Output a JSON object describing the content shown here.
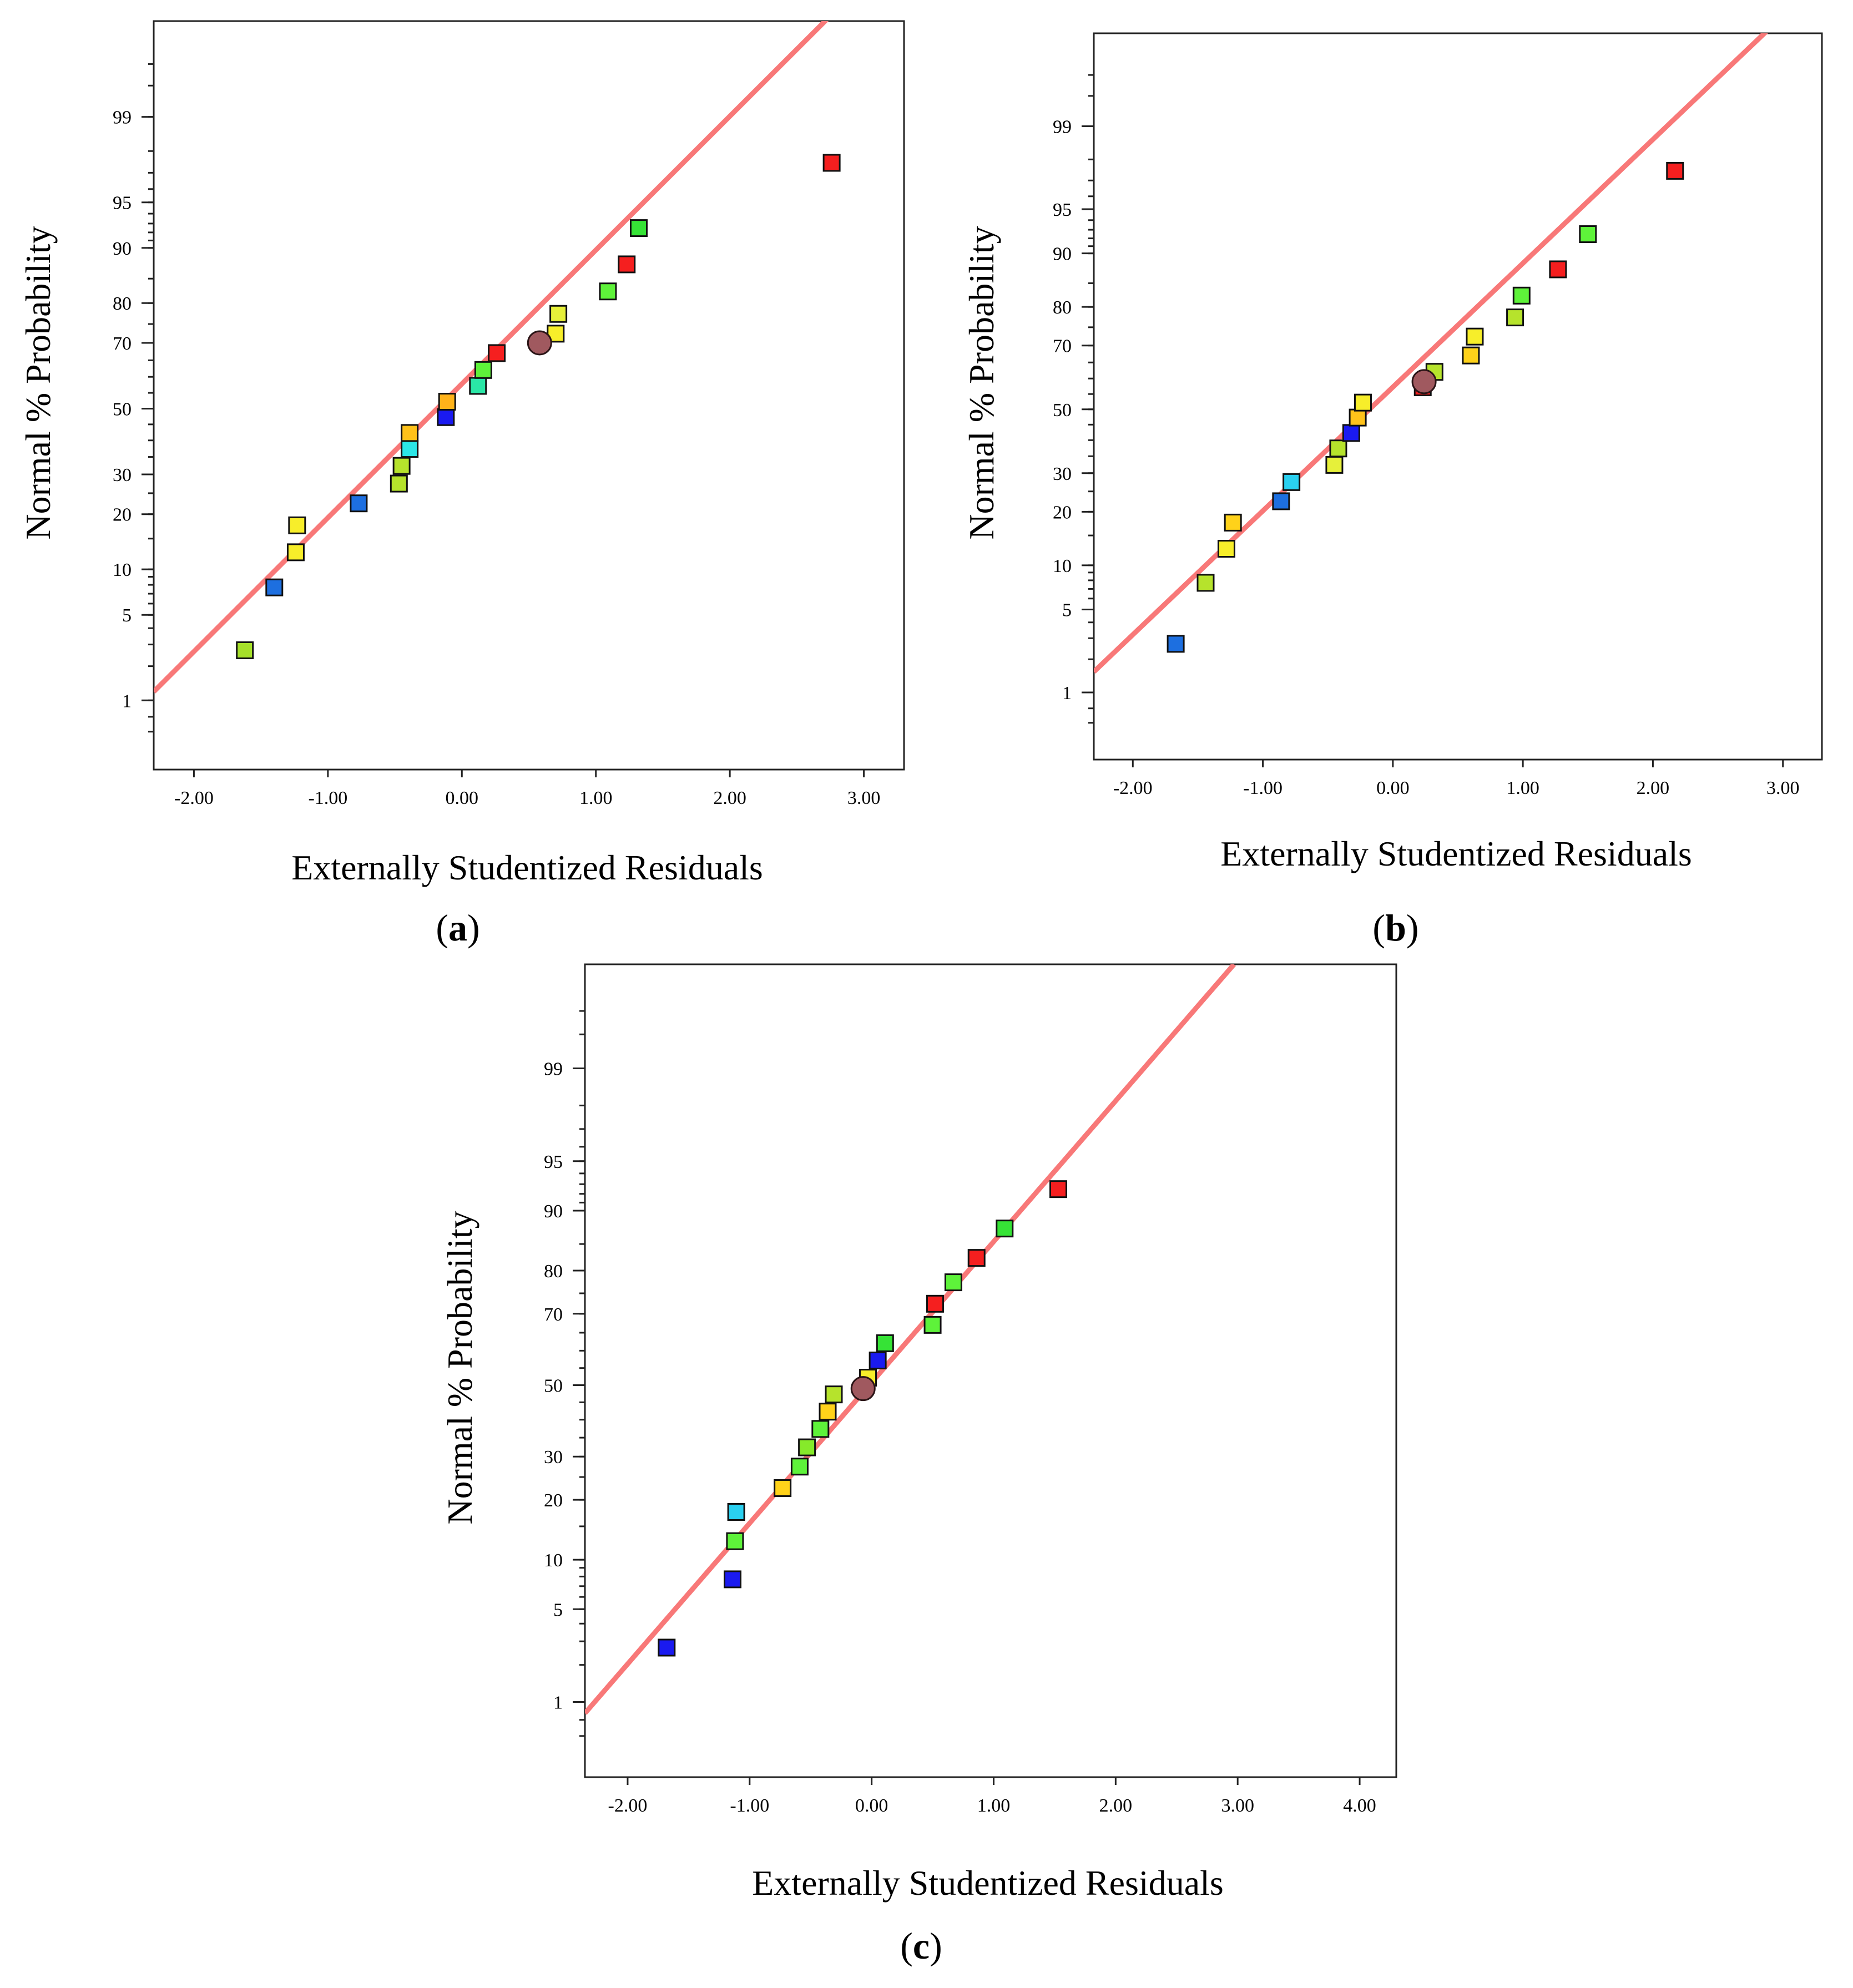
{
  "figure": {
    "colors": {
      "fit_line": "#f87878",
      "frame": "#222222",
      "centroid": "#a0595f"
    }
  },
  "chart_data": [
    {
      "id": "a",
      "panel_label": "a",
      "type": "scatter",
      "xlabel": "Externally Studentized Residuals",
      "ylabel": "Normal % Probability",
      "xlim": [
        -2.3,
        3.3
      ],
      "ylim_pct": [
        0.2,
        99.9
      ],
      "xticks": [
        -2,
        -1,
        0,
        1,
        2,
        3
      ],
      "xtick_labels": [
        "-2.00",
        "-1.00",
        "0.00",
        "1.00",
        "2.00",
        "3.00"
      ],
      "yticks_labeled": [
        1,
        5,
        10,
        20,
        30,
        50,
        70,
        80,
        90,
        95,
        99
      ],
      "fit_line": {
        "x0": -2.3,
        "p0": 1.2,
        "x1": 3.3,
        "p1": 99.99
      },
      "centroid": {
        "x": 0.58,
        "p": 70
      },
      "points": [
        {
          "x": -1.62,
          "p": 2.7,
          "color": "#a6e02a"
        },
        {
          "x": -1.4,
          "p": 7.7,
          "color": "#1d6fe0"
        },
        {
          "x": -1.24,
          "p": 12.6,
          "color": "#f7ee2a"
        },
        {
          "x": -1.23,
          "p": 17.6,
          "color": "#f7ee2a"
        },
        {
          "x": -0.77,
          "p": 22.5,
          "color": "#1d6fe0"
        },
        {
          "x": -0.47,
          "p": 27.5,
          "color": "#b6e32c"
        },
        {
          "x": -0.45,
          "p": 32.4,
          "color": "#b6e32c"
        },
        {
          "x": -0.39,
          "p": 37.4,
          "color": "#2be6e6"
        },
        {
          "x": -0.39,
          "p": 42.3,
          "color": "#ffc21a"
        },
        {
          "x": -0.12,
          "p": 47.3,
          "color": "#1a1af0"
        },
        {
          "x": -0.11,
          "p": 52.2,
          "color": "#ffb31a"
        },
        {
          "x": 0.12,
          "p": 57.2,
          "color": "#2ae6a6"
        },
        {
          "x": 0.16,
          "p": 62.1,
          "color": "#5ef23a"
        },
        {
          "x": 0.26,
          "p": 67.1,
          "color": "#f51f1f"
        },
        {
          "x": 0.7,
          "p": 72.5,
          "color": "#f7ee2a"
        },
        {
          "x": 0.72,
          "p": 77.5,
          "color": "#e6f03a"
        },
        {
          "x": 1.09,
          "p": 82.5,
          "color": "#5ef23a"
        },
        {
          "x": 1.23,
          "p": 87.5,
          "color": "#f51f1f"
        },
        {
          "x": 1.32,
          "p": 92.5,
          "color": "#36e336"
        },
        {
          "x": 2.76,
          "p": 97.5,
          "color": "#f51f1f"
        }
      ]
    },
    {
      "id": "b",
      "panel_label": "b",
      "type": "scatter",
      "xlabel": "Externally Studentized Residuals",
      "ylabel": "Normal % Probability",
      "xlim": [
        -2.3,
        3.3
      ],
      "ylim_pct": [
        0.2,
        99.9
      ],
      "xticks": [
        -2,
        -1,
        0,
        1,
        2,
        3
      ],
      "xtick_labels": [
        "-2.00",
        "-1.00",
        "0.00",
        "1.00",
        "2.00",
        "3.00"
      ],
      "yticks_labeled": [
        1,
        5,
        10,
        20,
        30,
        50,
        70,
        80,
        90,
        95,
        99
      ],
      "fit_line": {
        "x0": -2.3,
        "p0": 1.55,
        "x1": 3.3,
        "p1": 99.98
      },
      "centroid": {
        "x": 0.24,
        "p": 59
      },
      "points": [
        {
          "x": -1.67,
          "p": 2.7,
          "color": "#1d6fe0"
        },
        {
          "x": -1.44,
          "p": 7.7,
          "color": "#b6e32c"
        },
        {
          "x": -1.28,
          "p": 12.6,
          "color": "#f7ee2a"
        },
        {
          "x": -1.23,
          "p": 17.6,
          "color": "#ffd21a"
        },
        {
          "x": -0.86,
          "p": 22.5,
          "color": "#1d6fe0"
        },
        {
          "x": -0.78,
          "p": 27.5,
          "color": "#2ad0f0"
        },
        {
          "x": -0.45,
          "p": 32.4,
          "color": "#e6f03a"
        },
        {
          "x": -0.42,
          "p": 37.4,
          "color": "#b6e32c"
        },
        {
          "x": -0.32,
          "p": 42.3,
          "color": "#1a1af0"
        },
        {
          "x": -0.27,
          "p": 47.3,
          "color": "#ffc21a"
        },
        {
          "x": -0.23,
          "p": 52.2,
          "color": "#f7ee2a"
        },
        {
          "x": 0.23,
          "p": 57.2,
          "color": "#f51f1f"
        },
        {
          "x": 0.32,
          "p": 62.1,
          "color": "#b6e32c"
        },
        {
          "x": 0.6,
          "p": 67.1,
          "color": "#ffd21a"
        },
        {
          "x": 0.63,
          "p": 72.5,
          "color": "#f7ee2a"
        },
        {
          "x": 0.94,
          "p": 77.5,
          "color": "#b6e32c"
        },
        {
          "x": 0.99,
          "p": 82.5,
          "color": "#5ef23a"
        },
        {
          "x": 1.27,
          "p": 87.5,
          "color": "#f51f1f"
        },
        {
          "x": 1.5,
          "p": 92.5,
          "color": "#5ef23a"
        },
        {
          "x": 2.17,
          "p": 97.5,
          "color": "#f51f1f"
        }
      ]
    },
    {
      "id": "c",
      "panel_label": "c",
      "type": "scatter",
      "xlabel": "Externally Studentized Residuals",
      "ylabel": "Normal % Probability",
      "xlim": [
        -2.35,
        4.3
      ],
      "ylim_pct": [
        0.2,
        99.9
      ],
      "xticks": [
        -2,
        -1,
        0,
        1,
        2,
        3,
        4
      ],
      "xtick_labels": [
        "-2.00",
        "-1.00",
        "0.00",
        "1.00",
        "2.00",
        "3.00",
        "4.00"
      ],
      "yticks_labeled": [
        1,
        5,
        10,
        20,
        30,
        50,
        70,
        80,
        90,
        95,
        99
      ],
      "fit_line": {
        "x0": -2.35,
        "p0": 0.8,
        "x1": 2.97,
        "p1": 99.9
      },
      "centroid": {
        "x": -0.07,
        "p": 49
      },
      "points": [
        {
          "x": -1.68,
          "p": 2.7,
          "color": "#1a1af0"
        },
        {
          "x": -1.14,
          "p": 7.7,
          "color": "#1a1af0"
        },
        {
          "x": -1.12,
          "p": 12.6,
          "color": "#5ef23a"
        },
        {
          "x": -1.11,
          "p": 17.6,
          "color": "#2ad0f0"
        },
        {
          "x": -0.73,
          "p": 22.5,
          "color": "#ffd21a"
        },
        {
          "x": -0.59,
          "p": 27.5,
          "color": "#5ef23a"
        },
        {
          "x": -0.53,
          "p": 32.4,
          "color": "#86ea2a"
        },
        {
          "x": -0.42,
          "p": 37.4,
          "color": "#5ef23a"
        },
        {
          "x": -0.36,
          "p": 42.3,
          "color": "#ffd21a"
        },
        {
          "x": -0.31,
          "p": 47.3,
          "color": "#b6e32c"
        },
        {
          "x": -0.03,
          "p": 52.2,
          "color": "#f7ee2a"
        },
        {
          "x": 0.05,
          "p": 57.2,
          "color": "#1a1af0"
        },
        {
          "x": 0.11,
          "p": 62.1,
          "color": "#36e336"
        },
        {
          "x": 0.5,
          "p": 67.1,
          "color": "#5ef23a"
        },
        {
          "x": 0.52,
          "p": 72.5,
          "color": "#f51f1f"
        },
        {
          "x": 0.67,
          "p": 77.5,
          "color": "#5ef23a"
        },
        {
          "x": 0.86,
          "p": 82.5,
          "color": "#f51f1f"
        },
        {
          "x": 1.09,
          "p": 87.5,
          "color": "#36e336"
        },
        {
          "x": 1.53,
          "p": 92.5,
          "color": "#f51f1f"
        }
      ]
    }
  ]
}
